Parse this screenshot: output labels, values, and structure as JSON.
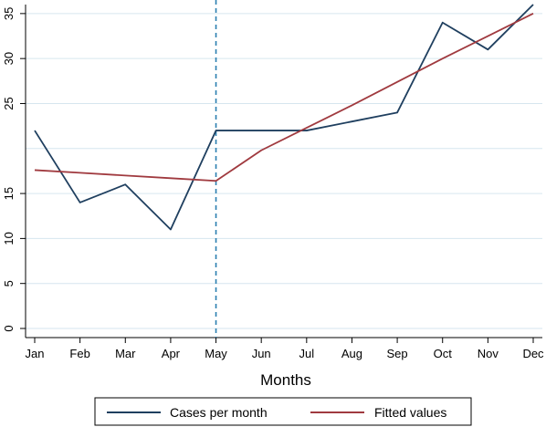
{
  "chart_data": {
    "type": "line",
    "title": "",
    "xlabel": "Months",
    "ylabel": "",
    "categories": [
      "Jan",
      "Feb",
      "Mar",
      "Apr",
      "May",
      "Jun",
      "Jul",
      "Aug",
      "Sep",
      "Oct",
      "Nov",
      "Dec"
    ],
    "yticks": [
      0,
      5,
      10,
      15,
      25,
      30,
      35
    ],
    "gridlines": [
      0,
      5,
      10,
      15,
      20,
      25,
      30,
      35
    ],
    "ylim": [
      0,
      36
    ],
    "grid": true,
    "series": [
      {
        "name": "Cases per month",
        "color": "#1f3f5f",
        "values": [
          22,
          14,
          16,
          11,
          22,
          22,
          22,
          23,
          24,
          34,
          31,
          36
        ]
      },
      {
        "name": "Fitted values",
        "color": "#a03a3f",
        "values": [
          17.6,
          17.3,
          17.0,
          16.7,
          16.4,
          19.8,
          22.3,
          24.8,
          27.4,
          30.0,
          32.5,
          35.0
        ]
      }
    ],
    "vertical_line": {
      "category": "May",
      "style": "dashed",
      "color": "#2a7fb0"
    },
    "legend": {
      "position": "bottom"
    }
  }
}
